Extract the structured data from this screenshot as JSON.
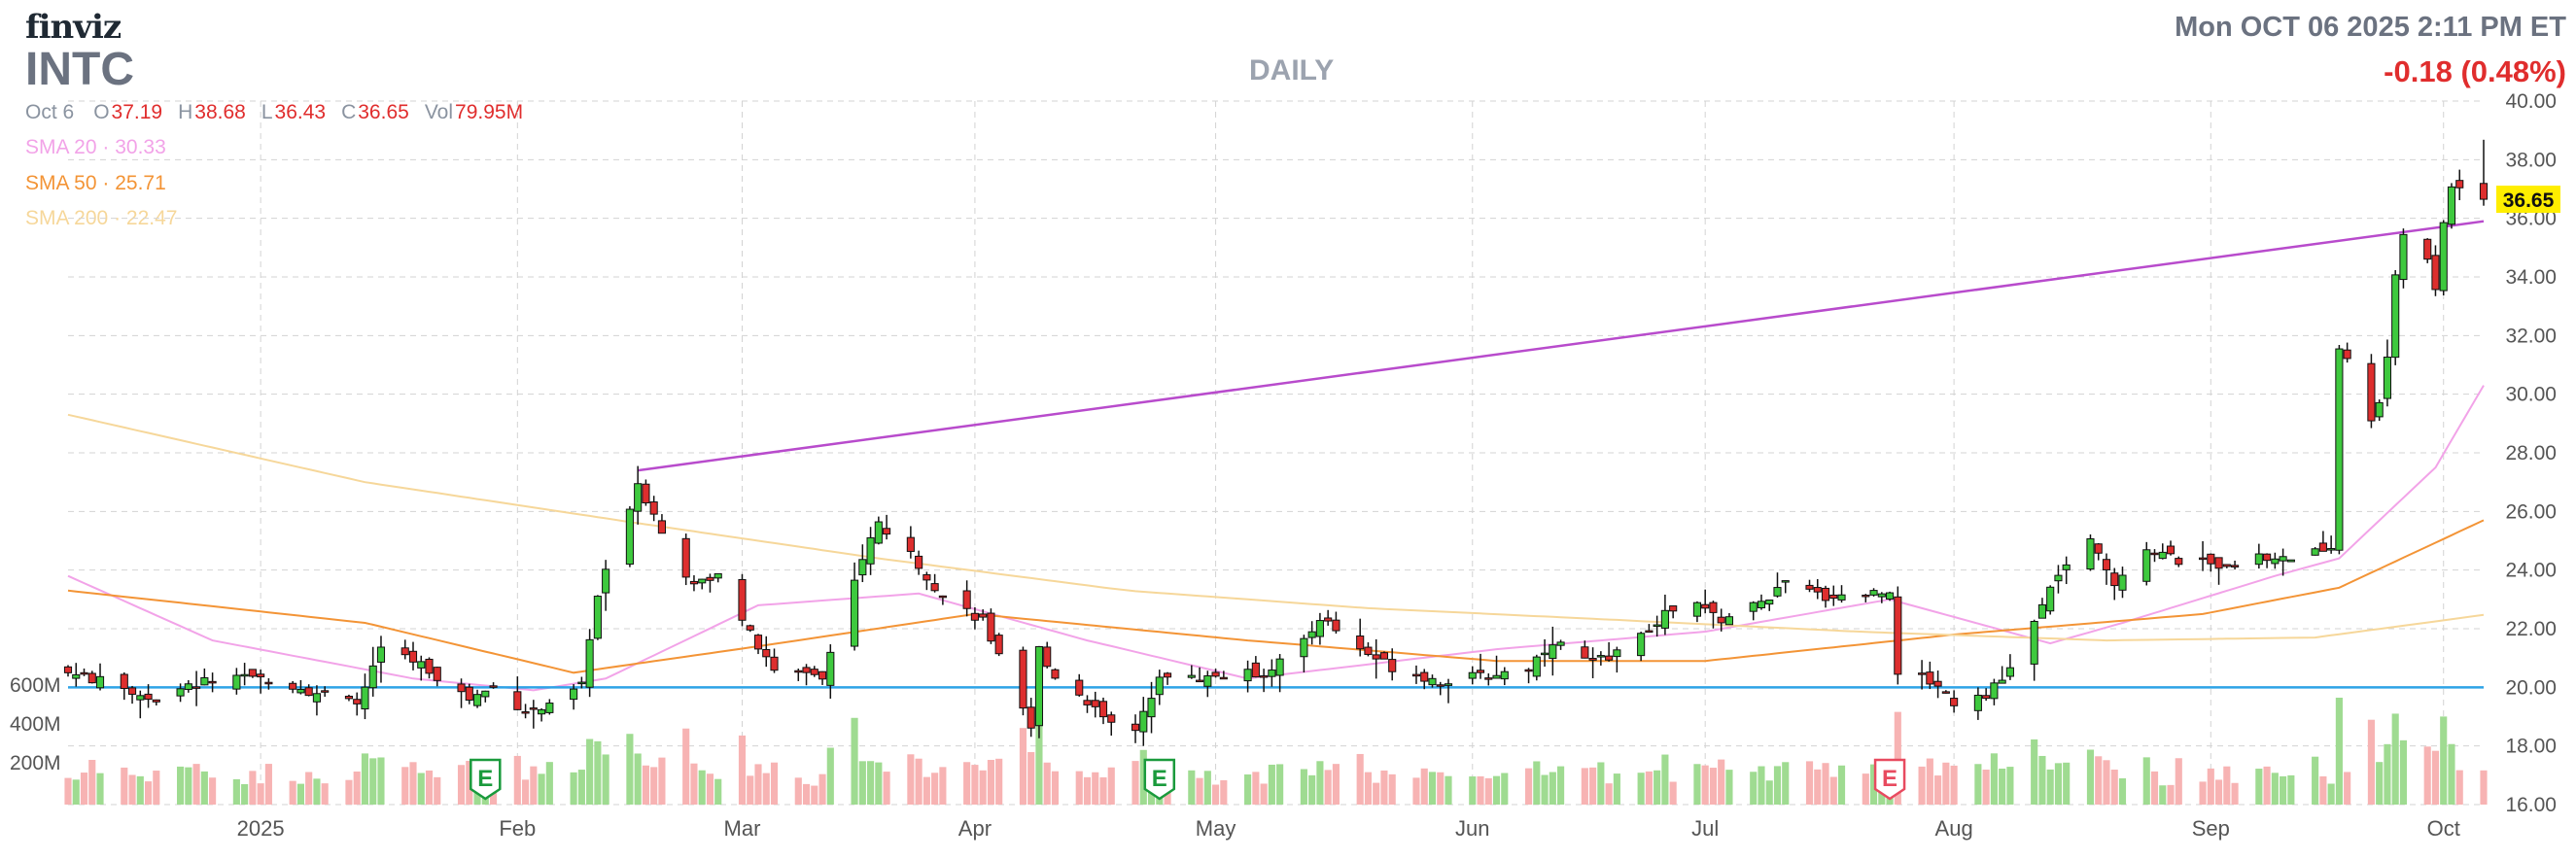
{
  "header": {
    "logo": "finviz",
    "ticker": "INTC",
    "timeframe": "DAILY",
    "datetime": "Mon OCT 06 2025 2:11 PM ET",
    "change": "-0.18 (0.48%)"
  },
  "ohlc": {
    "date": "Oct 6",
    "o_label": "O",
    "o": "37.19",
    "h_label": "H",
    "h": "38.68",
    "l_label": "L",
    "l": "36.43",
    "c_label": "C",
    "c": "36.65",
    "vol_label": "Vol",
    "vol": "79.95M"
  },
  "sma": [
    {
      "label": "SMA 20",
      "value": "30.33",
      "color": "#f2a3e8"
    },
    {
      "label": "SMA 50",
      "value": "25.71",
      "color": "#f39436"
    },
    {
      "label": "SMA 200",
      "value": "22.47",
      "color": "#f6d79a"
    }
  ],
  "colors": {
    "up": "#3ec93e",
    "down": "#dd2e2e",
    "upVol": "#9fdb91",
    "downVol": "#f7b3b3",
    "trendline": "#b84bcc",
    "hline": "#2ea3e6",
    "grid": "#d3d3d3",
    "earnings_up": "#1a9a3c",
    "earnings_down": "#e84a5f",
    "price_tag": "#ffee00"
  },
  "chart_data": {
    "type": "candlestick",
    "last_price": "36.65",
    "y_axis": {
      "min": 16,
      "max": 40,
      "ticks": [
        "40.00",
        "38.00",
        "36.00",
        "34.00",
        "32.00",
        "30.00",
        "28.00",
        "26.00",
        "24.00",
        "22.00",
        "20.00",
        "18.00",
        "16.00"
      ]
    },
    "volume_axis": {
      "max_m": 250,
      "ticks": [
        "600M",
        "400M",
        "200M"
      ]
    },
    "x_labels": [
      {
        "label": "2025",
        "date": "2025-01-02"
      },
      {
        "label": "Feb",
        "date": "2025-02-03"
      },
      {
        "label": "Mar",
        "date": "2025-03-03"
      },
      {
        "label": "Apr",
        "date": "2025-04-01"
      },
      {
        "label": "May",
        "date": "2025-05-01"
      },
      {
        "label": "Jun",
        "date": "2025-06-02"
      },
      {
        "label": "Jul",
        "date": "2025-07-01"
      },
      {
        "label": "Aug",
        "date": "2025-08-01"
      },
      {
        "label": "Sep",
        "date": "2025-09-02"
      },
      {
        "label": "Oct",
        "date": "2025-10-01"
      }
    ],
    "earnings": [
      {
        "date": "2025-01-30",
        "label": "E",
        "kind": "up"
      },
      {
        "date": "2025-04-24",
        "label": "E",
        "kind": "up"
      },
      {
        "date": "2025-07-24",
        "label": "E",
        "kind": "down"
      }
    ],
    "trendline": {
      "start": [
        "2025-02-18",
        27.4
      ],
      "end": [
        "2025-10-06",
        35.9
      ]
    },
    "horizontal_line": 20.0,
    "anchors": [
      [
        "2024-12-09",
        20.5
      ],
      [
        "2024-12-13",
        20.2
      ],
      [
        "2024-12-20",
        19.6
      ],
      [
        "2024-12-26",
        20.2
      ],
      [
        "2025-01-03",
        20.3
      ],
      [
        "2025-01-08",
        19.9
      ],
      [
        "2025-01-14",
        19.4
      ],
      [
        "2025-01-17",
        21.3
      ],
      [
        "2025-01-22",
        20.8
      ],
      [
        "2025-01-28",
        19.6
      ],
      [
        "2025-01-31",
        20.0
      ],
      [
        "2025-02-04",
        19.2
      ],
      [
        "2025-02-07",
        19.3
      ],
      [
        "2025-02-11",
        20.1
      ],
      [
        "2025-02-13",
        23.1
      ],
      [
        "2025-02-18",
        27.0
      ],
      [
        "2025-02-20",
        25.9
      ],
      [
        "2025-02-25",
        23.4
      ],
      [
        "2025-02-28",
        24.0
      ],
      [
        "2025-03-04",
        21.8
      ],
      [
        "2025-03-07",
        20.5
      ],
      [
        "2025-03-11",
        20.6
      ],
      [
        "2025-03-13",
        20.3
      ],
      [
        "2025-03-17",
        23.8
      ],
      [
        "2025-03-20",
        25.6
      ],
      [
        "2025-03-25",
        24.2
      ],
      [
        "2025-03-28",
        23.1
      ],
      [
        "2025-04-02",
        22.3
      ],
      [
        "2025-04-04",
        21.0
      ],
      [
        "2025-04-08",
        18.5
      ],
      [
        "2025-04-09",
        21.3
      ],
      [
        "2025-04-11",
        20.4
      ],
      [
        "2025-04-16",
        19.3
      ],
      [
        "2025-04-21",
        18.4
      ],
      [
        "2025-04-24",
        20.5
      ],
      [
        "2025-04-28",
        20.3
      ],
      [
        "2025-05-02",
        20.4
      ],
      [
        "2025-05-07",
        20.5
      ],
      [
        "2025-05-12",
        21.5
      ],
      [
        "2025-05-14",
        22.4
      ],
      [
        "2025-05-19",
        21.3
      ],
      [
        "2025-05-23",
        20.7
      ],
      [
        "2025-05-29",
        20.2
      ],
      [
        "2025-06-04",
        20.4
      ],
      [
        "2025-06-09",
        20.7
      ],
      [
        "2025-06-12",
        21.6
      ],
      [
        "2025-06-17",
        20.8
      ],
      [
        "2025-06-23",
        21.7
      ],
      [
        "2025-06-26",
        22.5
      ],
      [
        "2025-06-30",
        22.8
      ],
      [
        "2025-07-03",
        22.3
      ],
      [
        "2025-07-08",
        22.9
      ],
      [
        "2025-07-11",
        23.5
      ],
      [
        "2025-07-16",
        23.1
      ],
      [
        "2025-07-21",
        23.2
      ],
      [
        "2025-07-24",
        23.3
      ],
      [
        "2025-07-25",
        20.6
      ],
      [
        "2025-07-30",
        20.1
      ],
      [
        "2025-08-01",
        19.5
      ],
      [
        "2025-08-05",
        19.8
      ],
      [
        "2025-08-07",
        20.2
      ],
      [
        "2025-08-11",
        22.2
      ],
      [
        "2025-08-14",
        23.9
      ],
      [
        "2025-08-18",
        24.9
      ],
      [
        "2025-08-21",
        23.6
      ],
      [
        "2025-08-25",
        24.8
      ],
      [
        "2025-08-29",
        24.3
      ],
      [
        "2025-09-03",
        24.2
      ],
      [
        "2025-09-08",
        24.4
      ],
      [
        "2025-09-12",
        24.4
      ],
      [
        "2025-09-16",
        24.7
      ],
      [
        "2025-09-17",
        24.8
      ],
      [
        "2025-09-18",
        31.7
      ],
      [
        "2025-09-22",
        29.2
      ],
      [
        "2025-09-23",
        29.8
      ],
      [
        "2025-09-24",
        31.3
      ],
      [
        "2025-09-25",
        33.9
      ],
      [
        "2025-09-26",
        35.5
      ],
      [
        "2025-09-29",
        34.5
      ],
      [
        "2025-09-30",
        33.5
      ],
      [
        "2025-10-01",
        35.9
      ],
      [
        "2025-10-02",
        37.2
      ],
      [
        "2025-10-03",
        37.1
      ],
      [
        "2025-10-06",
        36.65
      ]
    ],
    "sma_anchors": {
      "sma20": [
        [
          "2024-12-09",
          23.8
        ],
        [
          "2024-12-27",
          21.6
        ],
        [
          "2025-01-21",
          20.3
        ],
        [
          "2025-02-05",
          19.9
        ],
        [
          "2025-02-14",
          20.3
        ],
        [
          "2025-03-05",
          22.8
        ],
        [
          "2025-03-25",
          23.2
        ],
        [
          "2025-04-15",
          21.6
        ],
        [
          "2025-05-05",
          20.3
        ],
        [
          "2025-06-05",
          21.3
        ],
        [
          "2025-07-01",
          21.9
        ],
        [
          "2025-07-24",
          23.0
        ],
        [
          "2025-08-13",
          21.5
        ],
        [
          "2025-08-22",
          22.2
        ],
        [
          "2025-09-10",
          23.8
        ],
        [
          "2025-09-18",
          24.4
        ],
        [
          "2025-09-30",
          27.5
        ],
        [
          "2025-10-06",
          30.3
        ]
      ],
      "sma50": [
        [
          "2024-12-09",
          23.3
        ],
        [
          "2025-01-15",
          22.2
        ],
        [
          "2025-02-10",
          20.5
        ],
        [
          "2025-03-05",
          21.4
        ],
        [
          "2025-04-01",
          22.5
        ],
        [
          "2025-05-05",
          21.6
        ],
        [
          "2025-06-05",
          20.9
        ],
        [
          "2025-07-01",
          20.9
        ],
        [
          "2025-08-01",
          21.8
        ],
        [
          "2025-09-01",
          22.5
        ],
        [
          "2025-09-18",
          23.4
        ],
        [
          "2025-10-06",
          25.7
        ]
      ],
      "sma200": [
        [
          "2024-12-09",
          29.3
        ],
        [
          "2025-01-15",
          27.0
        ],
        [
          "2025-02-18",
          25.6
        ],
        [
          "2025-03-20",
          24.4
        ],
        [
          "2025-04-20",
          23.3
        ],
        [
          "2025-05-20",
          22.7
        ],
        [
          "2025-06-20",
          22.3
        ],
        [
          "2025-07-20",
          21.9
        ],
        [
          "2025-08-20",
          21.6
        ],
        [
          "2025-09-15",
          21.7
        ],
        [
          "2025-10-06",
          22.47
        ]
      ]
    }
  }
}
